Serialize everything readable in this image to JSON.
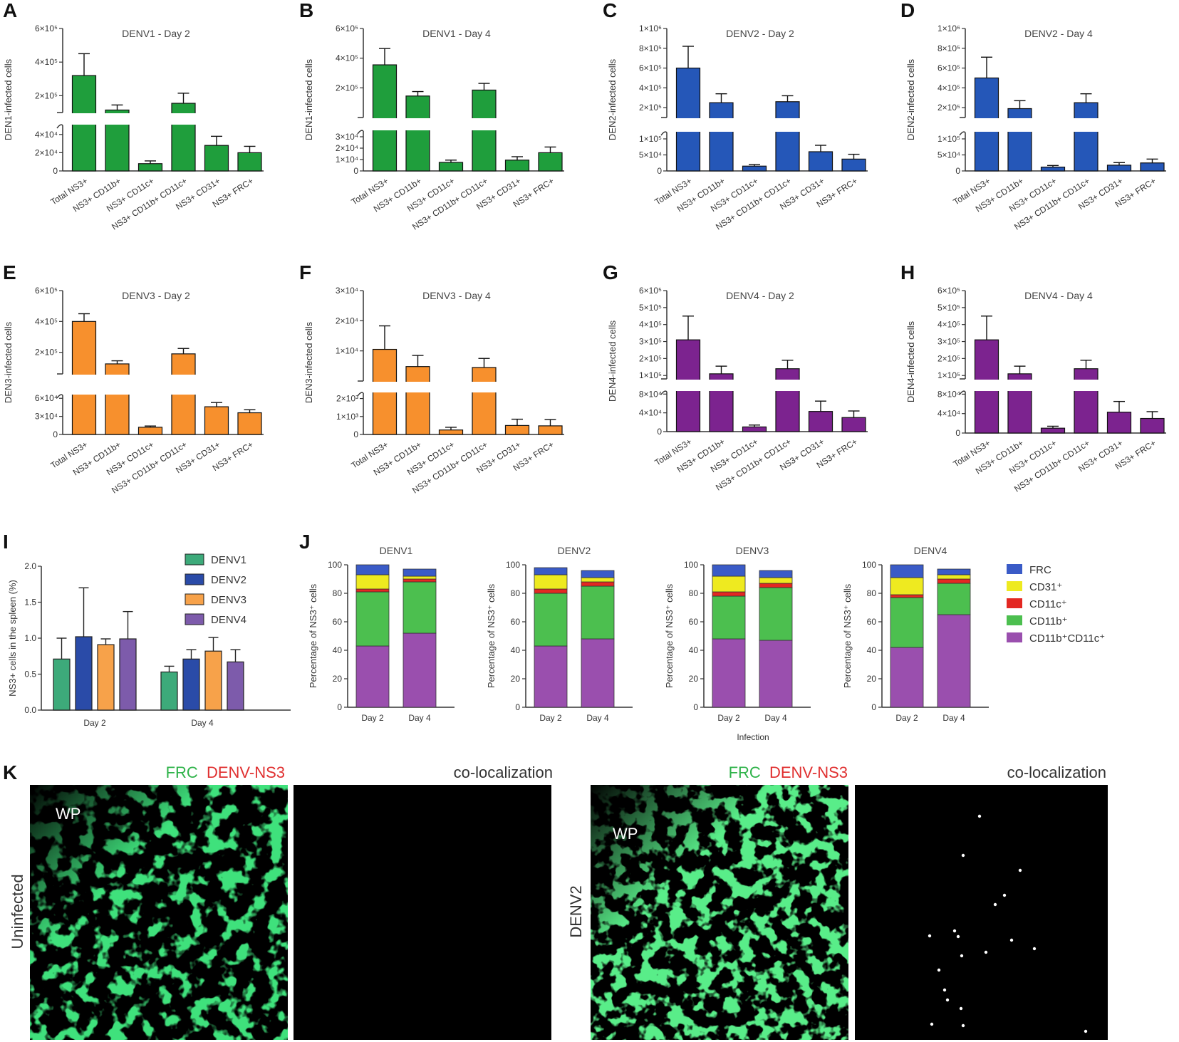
{
  "panel_letters": [
    "A",
    "B",
    "C",
    "D",
    "E",
    "F",
    "G",
    "H",
    "I",
    "J",
    "K"
  ],
  "colors": {
    "green": "#1f9e3c",
    "blue": "#2557b8",
    "orange": "#f7902d",
    "purple": "#7c238f",
    "frc": "#3a5bc7",
    "cd31": "#eeea20",
    "cd11c": "#e32822",
    "cd11b": "#4cbf4f",
    "cd11bcd11c": "#9a4fae"
  },
  "chart_data": [
    {
      "id": "A",
      "type": "bar",
      "title": "DENV1 - Day 2",
      "ylabel": "DEN1-infected cells",
      "categories": [
        "Total NS3+",
        "NS3+ CD11b+",
        "NS3+ CD11c+",
        "NS3+ CD11b+ CD11c+",
        "NS3+ CD31+",
        "NS3+ FRC+"
      ],
      "values": [
        320000,
        115000,
        8000,
        155000,
        28000,
        20000
      ],
      "errors": [
        130000,
        30000,
        3000,
        60000,
        10000,
        7000
      ],
      "upper": {
        "range": [
          100000,
          600000
        ],
        "ticks": [
          200000,
          400000,
          600000
        ],
        "labels": [
          "2×10⁵",
          "4×10⁵",
          "6×10⁵"
        ]
      },
      "lower": {
        "range": [
          0,
          50000
        ],
        "ticks": [
          0,
          20000,
          40000
        ],
        "labels": [
          "0",
          "2×10⁴",
          "4×10⁴"
        ]
      },
      "color": "green"
    },
    {
      "id": "B",
      "type": "bar",
      "title": "DENV1 - Day 4",
      "ylabel": "DEN1-infected cells",
      "categories": [
        "Total NS3+",
        "NS3+ CD11b+",
        "NS3+ CD11c+",
        "NS3+ CD11b+ CD11c+",
        "NS3+ CD31+",
        "NS3+ FRC+"
      ],
      "values": [
        355000,
        145000,
        7500,
        185000,
        9500,
        16000
      ],
      "errors": [
        110000,
        30000,
        2000,
        45000,
        3000,
        5000
      ],
      "upper": {
        "range": [
          0,
          600000
        ],
        "ticks": [
          200000,
          400000,
          600000
        ],
        "labels": [
          "2×10⁵",
          "4×10⁵",
          "6×10⁵"
        ]
      },
      "lower": {
        "range": [
          0,
          35000
        ],
        "ticks": [
          0,
          10000,
          20000,
          30000
        ],
        "labels": [
          "0",
          "1×10⁴",
          "2×10⁴",
          "3×10⁴"
        ]
      },
      "color": "green"
    },
    {
      "id": "C",
      "type": "bar",
      "title": "DENV2 - Day 2",
      "ylabel": "DEN2-infected cells",
      "categories": [
        "Total NS3+",
        "NS3+ CD11b+",
        "NS3+ CD11c+",
        "NS3+ CD11b+ CD11c+",
        "NS3+ CD31+",
        "NS3+ FRC+"
      ],
      "values": [
        600000,
        250000,
        15000,
        260000,
        60000,
        37000
      ],
      "errors": [
        220000,
        90000,
        5000,
        60000,
        20000,
        15000
      ],
      "upper": {
        "range": [
          100000,
          1000000
        ],
        "ticks": [
          200000,
          400000,
          600000,
          800000,
          1000000
        ],
        "labels": [
          "2×10⁵",
          "4×10⁵",
          "6×10⁵",
          "8×10⁵",
          "1×10⁶"
        ]
      },
      "lower": {
        "range": [
          0,
          120000
        ],
        "ticks": [
          0,
          50000,
          100000
        ],
        "labels": [
          "0",
          "5×10⁴",
          "1×10⁵"
        ]
      },
      "color": "blue"
    },
    {
      "id": "D",
      "type": "bar",
      "title": "DENV2 - Day 4",
      "ylabel": "DEN2-infected cells",
      "categories": [
        "Total NS3+",
        "NS3+ CD11b+",
        "NS3+ CD11c+",
        "NS3+ CD11b+ CD11c+",
        "NS3+ CD31+",
        "NS3+ FRC+"
      ],
      "values": [
        500000,
        190000,
        12000,
        250000,
        18000,
        25000
      ],
      "errors": [
        210000,
        80000,
        5000,
        90000,
        8000,
        12000
      ],
      "upper": {
        "range": [
          100000,
          1000000
        ],
        "ticks": [
          200000,
          400000,
          600000,
          800000,
          1000000
        ],
        "labels": [
          "2×10⁵",
          "4×10⁵",
          "6×10⁵",
          "8×10⁵",
          "1×10⁶"
        ]
      },
      "lower": {
        "range": [
          0,
          120000
        ],
        "ticks": [
          0,
          50000,
          100000
        ],
        "labels": [
          "0",
          "5×10⁴",
          "1×10⁵"
        ]
      },
      "color": "blue"
    },
    {
      "id": "E",
      "type": "bar",
      "title": "DENV3 - Day 2",
      "ylabel": "DEN3-infected cells",
      "categories": [
        "Total NS3+",
        "NS3+ CD11b+",
        "NS3+ CD11c+",
        "NS3+ CD11b+ CD11c+",
        "NS3+ CD31+",
        "NS3+ FRC+"
      ],
      "values": [
        400000,
        125000,
        12000,
        190000,
        46000,
        36000
      ],
      "errors": [
        50000,
        20000,
        2000,
        35000,
        7000,
        5000
      ],
      "upper": {
        "range": [
          60000,
          600000
        ],
        "ticks": [
          200000,
          400000,
          600000
        ],
        "labels": [
          "2×10⁵",
          "4×10⁵",
          "6×10⁵"
        ]
      },
      "lower": {
        "range": [
          0,
          65000
        ],
        "ticks": [
          0,
          30000,
          60000
        ],
        "labels": [
          "0",
          "3×10⁴",
          "6×10⁴"
        ]
      },
      "color": "orange"
    },
    {
      "id": "F",
      "type": "bar",
      "title": "DENV3 - Day 4",
      "ylabel": "DEN3-infected cells",
      "categories": [
        "Total NS3+",
        "NS3+ CD11b+",
        "NS3+ CD11c+",
        "NS3+ CD11b+ CD11c+",
        "NS3+ CD31+",
        "NS3+ FRC+"
      ],
      "values": [
        10500,
        4800,
        250,
        4500,
        500,
        480
      ],
      "errors": [
        7800,
        3700,
        150,
        3000,
        350,
        350
      ],
      "upper": {
        "range": [
          0,
          30000
        ],
        "ticks": [
          10000,
          20000,
          30000
        ],
        "labels": [
          "1×10⁴",
          "2×10⁴",
          "3×10⁴"
        ]
      },
      "lower": {
        "range": [
          0,
          2300
        ],
        "ticks": [
          0,
          1000,
          2000
        ],
        "labels": [
          "0",
          "1×10³",
          "2×10³"
        ]
      },
      "color": "orange"
    },
    {
      "id": "G",
      "type": "bar",
      "title": "DENV4 - Day 2",
      "ylabel": "DEN4-infected cells",
      "categories": [
        "Total NS3+",
        "NS3+ CD11b+",
        "NS3+ CD11c+",
        "NS3+ CD11b+ CD11c+",
        "NS3+ CD31+",
        "NS3+ FRC+"
      ],
      "values": [
        310000,
        110000,
        10000,
        140000,
        43000,
        30000
      ],
      "errors": [
        140000,
        45000,
        4000,
        50000,
        22000,
        14000
      ],
      "upper": {
        "range": [
          80000,
          600000
        ],
        "ticks": [
          100000,
          200000,
          300000,
          400000,
          500000,
          600000
        ],
        "labels": [
          "1×10⁵",
          "2×10⁵",
          "3×10⁵",
          "4×10⁵",
          "5×10⁵",
          "6×10⁵"
        ]
      },
      "lower": {
        "range": [
          0,
          85000
        ],
        "ticks": [
          0,
          40000,
          80000
        ],
        "labels": [
          "0",
          "4×10⁴",
          "8×10⁴"
        ]
      },
      "color": "purple"
    },
    {
      "id": "H",
      "type": "bar",
      "title": "DENV4 - Day 4",
      "ylabel": "DEN4-infected cells",
      "categories": [
        "Total NS3+",
        "NS3+ CD11b+",
        "NS3+ CD11c+",
        "NS3+ CD11b+ CD11c+",
        "NS3+ CD31+",
        "NS3+ FRC+"
      ],
      "values": [
        310000,
        110000,
        10000,
        140000,
        43000,
        30000
      ],
      "errors": [
        140000,
        45000,
        4000,
        50000,
        22000,
        14000
      ],
      "upper": {
        "range": [
          80000,
          600000
        ],
        "ticks": [
          100000,
          200000,
          300000,
          400000,
          500000,
          600000
        ],
        "labels": [
          "1×10⁵",
          "2×10⁵",
          "3×10⁵",
          "4×10⁵",
          "5×10⁵",
          "6×10⁵"
        ]
      },
      "lower": {
        "range": [
          0,
          85000
        ],
        "ticks": [
          0,
          40000,
          80000
        ],
        "labels": [
          "0",
          "4×10⁴",
          "8×10⁴"
        ]
      },
      "color": "purple"
    },
    {
      "id": "I",
      "type": "bar",
      "ylabel": "NS3+ cells in the spleen (%)",
      "categories": [
        "Day 2",
        "Day 4"
      ],
      "ylim": [
        0,
        2.0
      ],
      "yticks": [
        0.0,
        0.5,
        1.0,
        1.5,
        2.0
      ],
      "ytick_labels": [
        "0.0",
        "0.5",
        "1.0",
        "1.5",
        "2.0"
      ],
      "series": [
        {
          "name": "DENV1",
          "values": [
            0.71,
            0.53
          ],
          "errors": [
            0.29,
            0.08
          ],
          "color": "#3daa7a"
        },
        {
          "name": "DENV2",
          "values": [
            1.02,
            0.71
          ],
          "errors": [
            0.68,
            0.13
          ],
          "color": "#2a4ba8"
        },
        {
          "name": "DENV3",
          "values": [
            0.91,
            0.82
          ],
          "errors": [
            0.08,
            0.19
          ],
          "color": "#f7a24a"
        },
        {
          "name": "DENV4",
          "values": [
            0.99,
            0.67
          ],
          "errors": [
            0.38,
            0.17
          ],
          "color": "#7d5bab"
        }
      ],
      "legend": "top-right"
    },
    {
      "id": "J",
      "type": "bar",
      "stacked": true,
      "ylabel": "Percentage of NS3⁺ cells",
      "xlabel": "Infection",
      "ylim": [
        0,
        100
      ],
      "yticks": [
        0,
        20,
        40,
        60,
        80,
        100
      ],
      "categories": [
        "Day 2",
        "Day 4"
      ],
      "legend": [
        "FRC",
        "CD31⁺",
        "CD11c⁺",
        "CD11b⁺",
        "CD11b⁺CD11c⁺"
      ],
      "panels": [
        {
          "title": "DENV1",
          "stacks": [
            {
              "CD11b+CD11c+": 43,
              "CD11b+": 38,
              "CD11c+": 2,
              "CD31+": 10,
              "FRC": 7
            },
            {
              "CD11b+CD11c+": 52,
              "CD11b+": 36,
              "CD11c+": 2,
              "CD31+": 2,
              "FRC": 5
            }
          ]
        },
        {
          "title": "DENV2",
          "stacks": [
            {
              "CD11b+CD11c+": 43,
              "CD11b+": 37,
              "CD11c+": 3,
              "CD31+": 10,
              "FRC": 5
            },
            {
              "CD11b+CD11c+": 48,
              "CD11b+": 37,
              "CD11c+": 3,
              "CD31+": 3,
              "FRC": 5
            }
          ]
        },
        {
          "title": "DENV3",
          "stacks": [
            {
              "CD11b+CD11c+": 48,
              "CD11b+": 30,
              "CD11c+": 3,
              "CD31+": 11,
              "FRC": 8
            },
            {
              "CD11b+CD11c+": 47,
              "CD11b+": 37,
              "CD11c+": 3,
              "CD31+": 4,
              "FRC": 5
            }
          ]
        },
        {
          "title": "DENV4",
          "stacks": [
            {
              "CD11b+CD11c+": 42,
              "CD11b+": 35,
              "CD11c+": 2,
              "CD31+": 12,
              "FRC": 9
            },
            {
              "CD11b+CD11c+": 65,
              "CD11b+": 22,
              "CD11c+": 3,
              "CD31+": 3,
              "FRC": 4
            }
          ]
        }
      ]
    }
  ],
  "panel_k": {
    "title_green": "FRC",
    "title_red": "DENV-NS3",
    "coloc": "co-localization",
    "row_uninfected": "Uninfected",
    "row_denv2": "DENV2",
    "wp": "WP"
  }
}
